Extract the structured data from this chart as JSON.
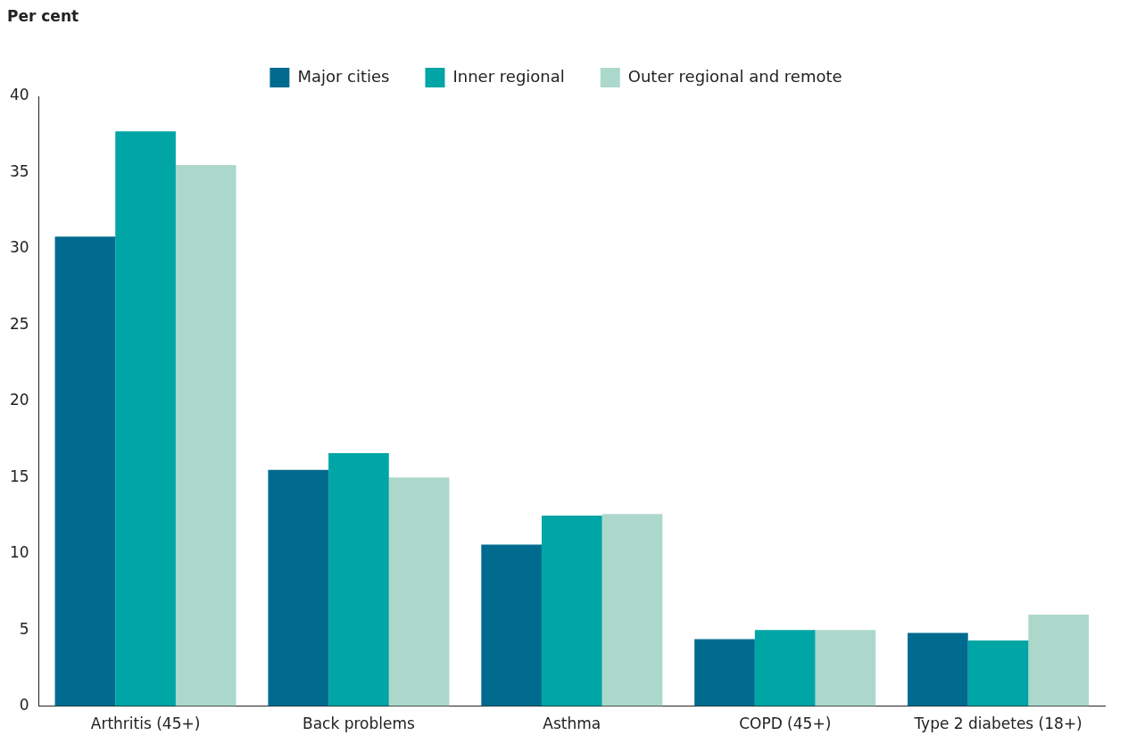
{
  "chart_data": {
    "type": "bar",
    "ylabel": "Per cent",
    "categories": [
      "Arthritis (45+)",
      "Back problems",
      "Asthma",
      "COPD (45+)",
      "Type 2 diabetes (18+)"
    ],
    "series": [
      {
        "name": "Major cities",
        "color": "#006b8f",
        "values": [
          30.8,
          15.5,
          10.6,
          4.4,
          4.8
        ]
      },
      {
        "name": "Inner regional",
        "color": "#00a5a5",
        "values": [
          37.7,
          16.6,
          12.5,
          5.0,
          4.3
        ]
      },
      {
        "name": "Outer regional and remote",
        "color": "#acd8cb",
        "values": [
          35.5,
          15.0,
          12.6,
          5.0,
          6.0
        ]
      }
    ],
    "ylim": [
      0,
      40
    ],
    "yticks": [
      0,
      5,
      10,
      15,
      20,
      25,
      30,
      35,
      40
    ],
    "grid": false,
    "legend": "top"
  }
}
